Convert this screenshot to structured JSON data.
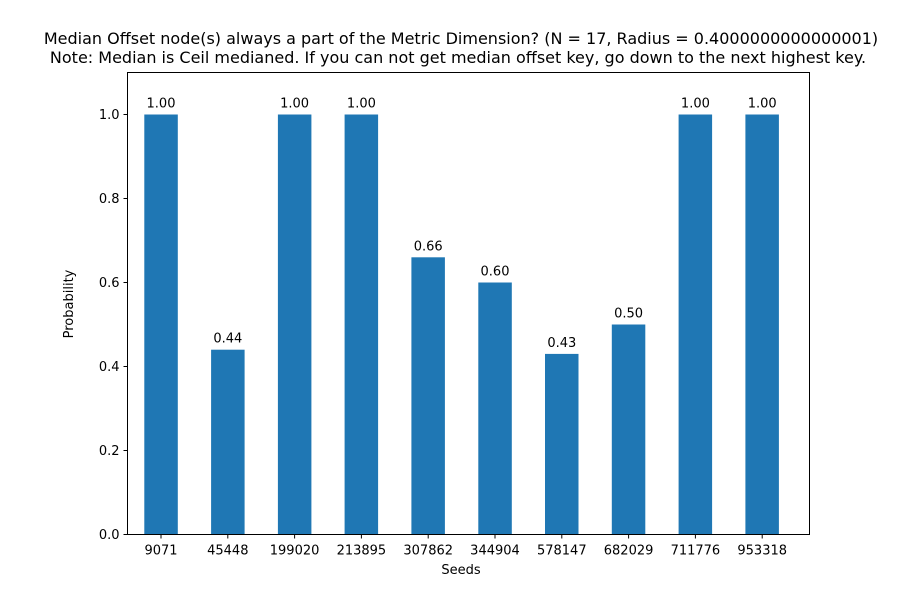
{
  "chart_data": {
    "type": "bar",
    "title": "Median Offset node(s) always a part of the Metric Dimension? (N = 17, Radius = 0.4000000000000001)",
    "subtitle": "Note: Median is Ceil medianed. If you can not get median offset key, go down to the next highest key.",
    "xlabel": "Seeds",
    "ylabel": "Probability",
    "ylim": [
      0,
      1.1
    ],
    "yticks": [
      0.0,
      0.2,
      0.4,
      0.6,
      0.8,
      1.0
    ],
    "ytick_labels": [
      "0.0",
      "0.2",
      "0.4",
      "0.6",
      "0.8",
      "1.0"
    ],
    "categories": [
      "9071",
      "45448",
      "199020",
      "213895",
      "307862",
      "344904",
      "578147",
      "682029",
      "711776",
      "953318"
    ],
    "values": [
      1.0,
      0.44,
      1.0,
      1.0,
      0.66,
      0.6,
      0.43,
      0.5,
      1.0,
      1.0
    ],
    "data_labels": [
      "1.00",
      "0.44",
      "1.00",
      "1.00",
      "0.66",
      "0.60",
      "0.43",
      "0.50",
      "1.00",
      "1.00"
    ],
    "colors": {
      "bar": "#1f77b4"
    },
    "grid": false,
    "legend": "none"
  }
}
